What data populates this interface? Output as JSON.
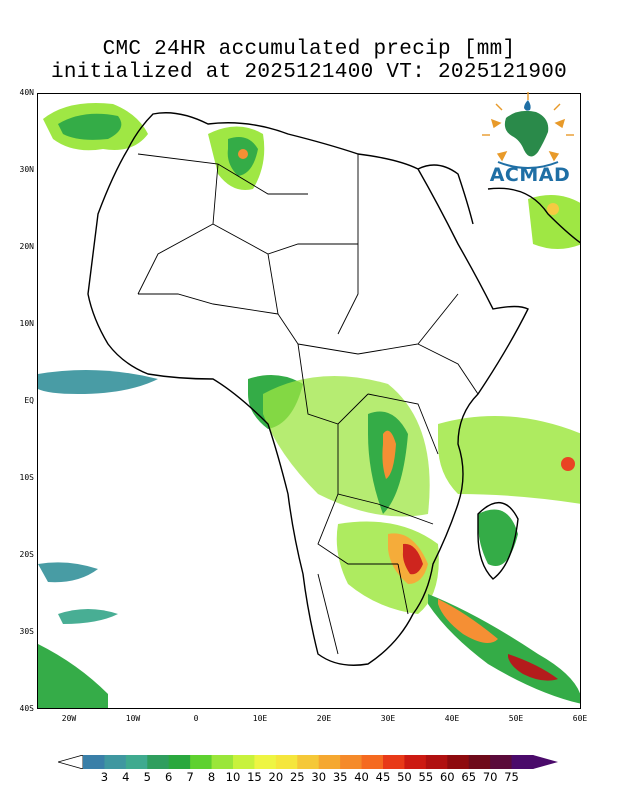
{
  "title": {
    "line1": "CMC 24HR accumulated precip [mm]",
    "line2": "initialized at 2025121400 VT: 2025121900"
  },
  "map": {
    "lat_range": [
      -40,
      40
    ],
    "lon_range": [
      -25,
      60
    ],
    "lat_labels": [
      "40N",
      "30N",
      "20N",
      "10N",
      "EQ",
      "10S",
      "20S",
      "30S",
      "40S"
    ],
    "lon_labels": [
      "20W",
      "10W",
      "0",
      "10E",
      "20E",
      "30E",
      "40E",
      "50E",
      "60E"
    ]
  },
  "logo": {
    "text": "ACMAD",
    "text_color": "#1f6fa5",
    "icon": "africa-globe-logo-icon"
  },
  "colorbar": {
    "levels": [
      "3",
      "4",
      "5",
      "6",
      "7",
      "8",
      "10",
      "15",
      "20",
      "25",
      "30",
      "35",
      "40",
      "45",
      "50",
      "55",
      "60",
      "65",
      "70",
      "75"
    ],
    "colors": [
      "#3a7fa8",
      "#3f97a0",
      "#3faa8f",
      "#2f9e5e",
      "#2aa83e",
      "#5ed12f",
      "#9ae63a",
      "#c8f23c",
      "#eef542",
      "#f5e63c",
      "#f5c838",
      "#f5a830",
      "#f58a2a",
      "#f56a20",
      "#e83a18",
      "#cc1a12",
      "#b01010",
      "#8e0a0e",
      "#6e0a1a",
      "#5a0a3a",
      "#4a0a6a"
    ],
    "under_color": "#ffffff",
    "over_color": "#4a0a6a"
  }
}
